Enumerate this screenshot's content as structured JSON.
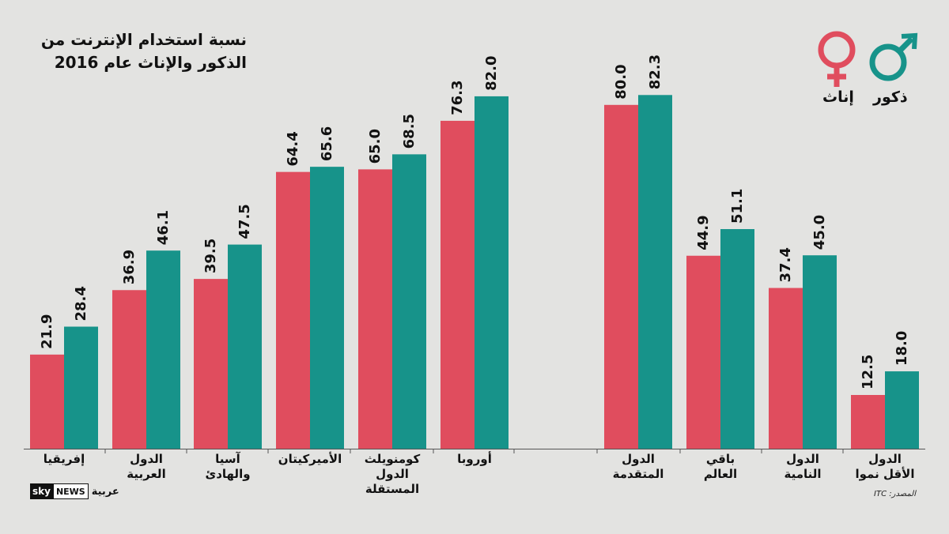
{
  "title_lines": [
    "نسبة استخدام الإنترنت من",
    "الذكور والإناث عام 2016"
  ],
  "legend": {
    "female_label": "إناث",
    "male_label": "ذكور",
    "female_color": "#e04d5e",
    "male_color": "#17938a"
  },
  "source": "المصدر: ITC",
  "logo": {
    "sky": "sky",
    "news": "NEWS",
    "arabic": "عربية"
  },
  "chart_data": {
    "type": "bar",
    "categories": [
      [
        "إفريقيا"
      ],
      [
        "الدول",
        "العربية"
      ],
      [
        "آسيا",
        "والهادئ"
      ],
      [
        "الأميركيتان"
      ],
      [
        "كومنويلث",
        "الدول",
        "المستقلة"
      ],
      [
        "أوروبا"
      ],
      [
        "الدول",
        "المتقدمة"
      ],
      [
        "باقي",
        "العالم"
      ],
      [
        "الدول",
        "النامية"
      ],
      [
        "الدول",
        "الأقل نموا"
      ]
    ],
    "series": [
      {
        "name": "إناث",
        "values": [
          21.9,
          36.9,
          39.5,
          64.4,
          65.0,
          76.3,
          80.0,
          44.9,
          37.4,
          12.5
        ],
        "labels": [
          "21.9",
          "36.9",
          "39.5",
          "64.4",
          "65.0",
          "76.3",
          "80.0",
          "44.9",
          "37.4",
          "12.5"
        ]
      },
      {
        "name": "ذكور",
        "values": [
          28.4,
          46.1,
          47.5,
          65.6,
          68.5,
          82.0,
          82.3,
          51.1,
          45.0,
          18.0
        ],
        "labels": [
          "28.4",
          "46.1",
          "47.5",
          "65.6",
          "68.5",
          "82.0",
          "82.3",
          "51.1",
          "45.0",
          "18.0"
        ]
      }
    ],
    "ylim": [
      0,
      100
    ],
    "grid": false,
    "legend_position": "top-right"
  }
}
